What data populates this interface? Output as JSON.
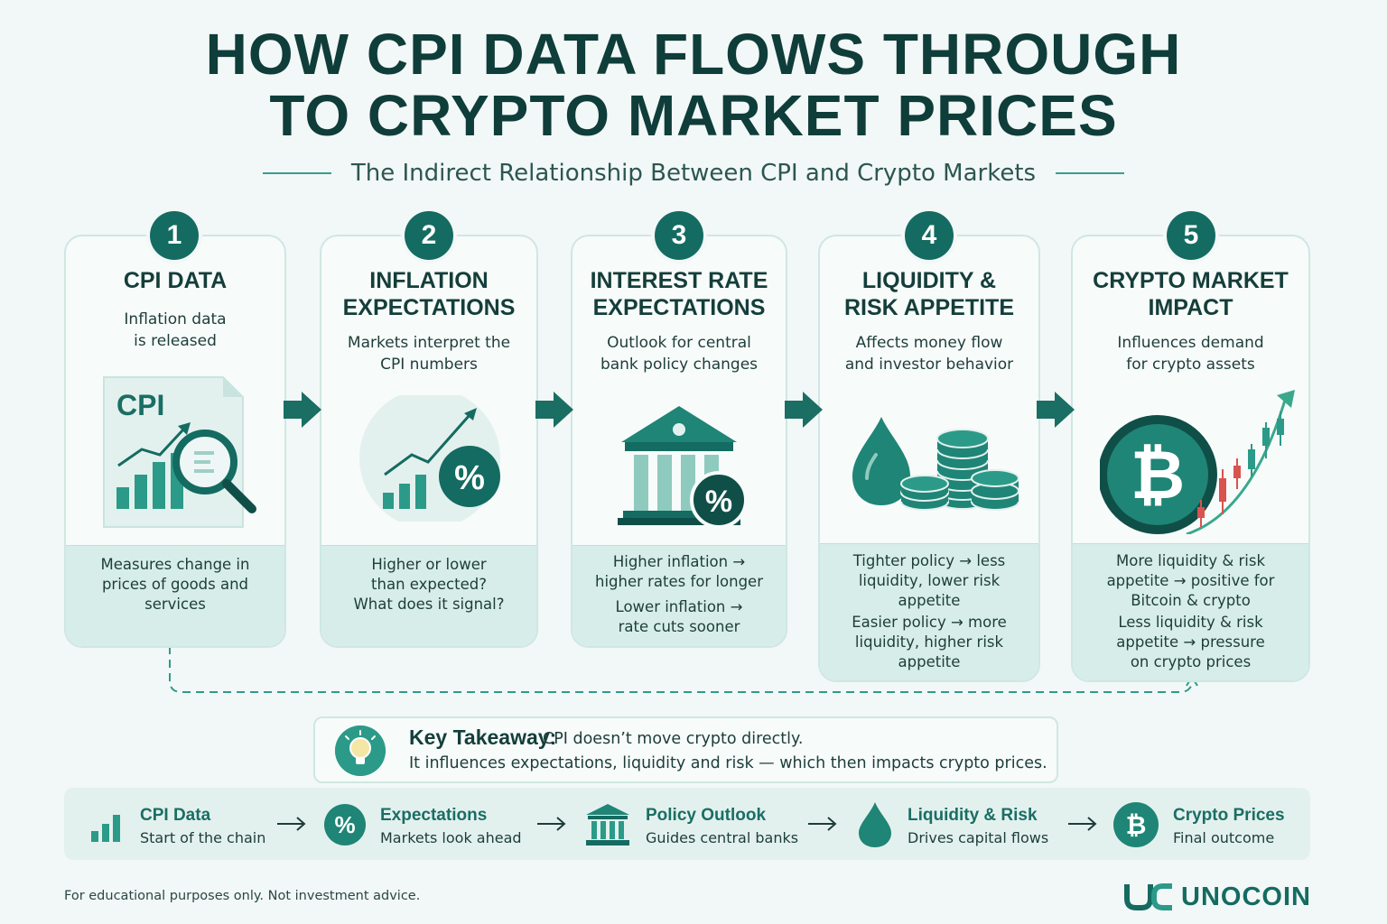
{
  "header": {
    "title_line1": "HOW CPI DATA FLOWS THROUGH",
    "title_line2": "TO CRYPTO MARKET PRICES",
    "subtitle": "The Indirect Relationship Between CPI and Crypto Markets"
  },
  "steps": [
    {
      "number": "1",
      "title_lines": [
        "CPI DATA"
      ],
      "desc_lines": [
        "Inflation data",
        "is released"
      ],
      "icon_label": "CPI",
      "icon": "document-chart-magnifier-icon",
      "foot_lines": [
        "Measures change in",
        "prices of goods and",
        "services"
      ]
    },
    {
      "number": "2",
      "title_lines": [
        "INFLATION",
        "EXPECTATIONS"
      ],
      "desc_lines": [
        "Markets interpret the",
        "CPI numbers"
      ],
      "icon_label": "%",
      "icon": "chart-percent-icon",
      "foot_lines": [
        "Higher or lower",
        "than expected?",
        "What does it signal?"
      ]
    },
    {
      "number": "3",
      "title_lines": [
        "INTEREST RATE",
        "EXPECTATIONS"
      ],
      "desc_lines": [
        "Outlook for central",
        "bank policy changes"
      ],
      "icon_label": "%",
      "icon": "bank-percent-icon",
      "foot_lines": [
        "Higher inflation →",
        "higher rates for longer",
        "Lower inflation →",
        "rate cuts sooner"
      ]
    },
    {
      "number": "4",
      "title_lines": [
        "LIQUIDITY &",
        "RISK APPETITE"
      ],
      "desc_lines": [
        "Affects money flow",
        "and investor behavior"
      ],
      "icon": "drop-coins-icon",
      "foot_lines": [
        "Tighter policy → less",
        "liquidity, lower risk",
        "appetite",
        "Easier policy → more",
        "liquidity, higher risk",
        "appetite"
      ]
    },
    {
      "number": "5",
      "title_lines": [
        "CRYPTO MARKET",
        "IMPACT"
      ],
      "desc_lines": [
        "Influences demand",
        "for crypto assets"
      ],
      "icon": "bitcoin-candles-icon",
      "foot_lines": [
        "More liquidity & risk",
        "appetite → positive for",
        "Bitcoin & crypto",
        "Less liquidity & risk",
        "appetite → pressure",
        "on crypto prices"
      ]
    }
  ],
  "takeaway": {
    "heading": "Key Takeaway:",
    "line1": "CPI doesn’t move crypto directly.",
    "line2": "It influences expectations, liquidity and risk — which then impacts crypto prices.",
    "icon": "lightbulb-icon"
  },
  "strip": [
    {
      "name": "CPI Data",
      "sub": "Start of the chain",
      "icon": "bar-chart-icon"
    },
    {
      "name": "Expectations",
      "sub": "Markets look ahead",
      "icon": "percent-icon"
    },
    {
      "name": "Policy Outlook",
      "sub": "Guides central banks",
      "icon": "bank-icon"
    },
    {
      "name": "Liquidity & Risk",
      "sub": "Drives capital flows",
      "icon": "drop-icon"
    },
    {
      "name": "Crypto Prices",
      "sub": "Final outcome",
      "icon": "bitcoin-icon"
    }
  ],
  "footer": {
    "disclaimer": "For educational purposes only. Not investment advice.",
    "brand": "UNOCOIN"
  },
  "colors": {
    "primary": "#146b61",
    "accent": "#2c9a88",
    "background": "#f2f8f7",
    "card_foot": "#d7ede9",
    "candle_red": "#d9534f"
  }
}
